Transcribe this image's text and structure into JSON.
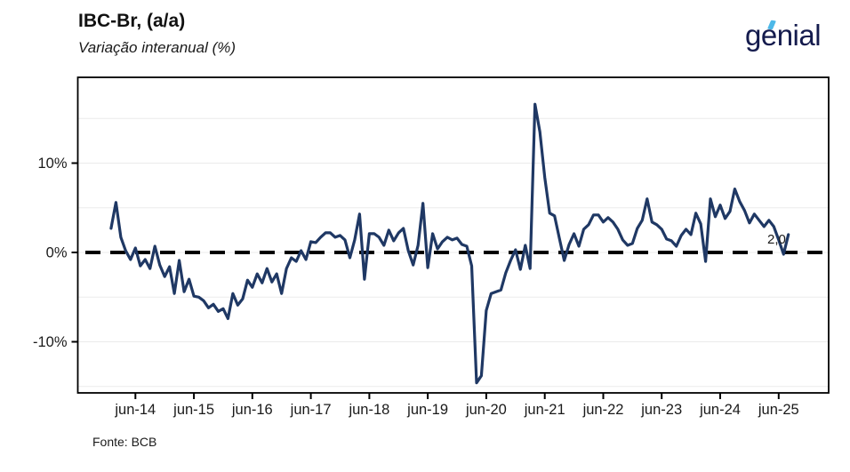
{
  "header": {
    "title": "IBC-Br, (a/a)",
    "subtitle": "Variação interanual (%)"
  },
  "logo": {
    "text": "genial",
    "color": "#141B4D",
    "accent_color": "#4DB8E8"
  },
  "footer": {
    "source": "Fonte: BCB"
  },
  "chart_data": {
    "type": "line",
    "title": "IBC-Br, (a/a)",
    "subtitle": "Variação interanual (%)",
    "unit": "percent, year-over-year",
    "start_month": "2014-01",
    "end_month": "2025-08",
    "grid": true,
    "legend": false,
    "ylim": [
      -15.7,
      19.6
    ],
    "gridline_values": [
      15,
      10,
      5,
      0,
      -5,
      -10,
      -15
    ],
    "y_tick_values": [
      10,
      0,
      -10
    ],
    "y_tick_labels": [
      "10%",
      "0%",
      "-10%"
    ],
    "x_tick_labels": [
      "jun-14",
      "jun-15",
      "jun-16",
      "jun-17",
      "jun-18",
      "jun-19",
      "jun-20",
      "jun-21",
      "jun-22",
      "jun-23",
      "jun-24",
      "jun-25"
    ],
    "x_tick_month_indices": [
      5,
      17,
      29,
      41,
      53,
      65,
      77,
      89,
      101,
      113,
      125,
      137
    ],
    "zero_reference_line": {
      "value": 0,
      "style": "dashed",
      "color": "#000000"
    },
    "last_point_label": "2,0",
    "series": [
      {
        "name": "IBC-Br variação interanual (%)",
        "color": "#1F3864",
        "values": [
          2.7,
          5.6,
          1.7,
          0.2,
          -0.8,
          0.5,
          -1.5,
          -0.8,
          -1.8,
          0.7,
          -1.4,
          -2.7,
          -1.6,
          -4.6,
          -0.9,
          -4.4,
          -3.0,
          -4.9,
          -5.0,
          -5.4,
          -6.2,
          -5.8,
          -6.6,
          -6.3,
          -7.4,
          -4.6,
          -5.9,
          -5.2,
          -3.1,
          -3.9,
          -2.4,
          -3.4,
          -1.8,
          -3.3,
          -2.4,
          -4.6,
          -1.8,
          -0.6,
          -1.0,
          0.2,
          -0.8,
          1.2,
          1.1,
          1.7,
          2.2,
          2.2,
          1.7,
          1.9,
          1.4,
          -0.6,
          1.4,
          4.3,
          -3.0,
          2.1,
          2.1,
          1.7,
          0.8,
          2.5,
          1.3,
          2.2,
          2.7,
          0.2,
          -1.4,
          0.8,
          5.5,
          -1.7,
          2.1,
          0.4,
          1.2,
          1.7,
          1.4,
          1.6,
          0.9,
          0.7,
          -1.5,
          -14.6,
          -13.8,
          -6.5,
          -4.6,
          -4.4,
          -4.2,
          -2.3,
          -0.9,
          0.3,
          -1.9,
          0.8,
          -1.8,
          16.6,
          13.5,
          8.4,
          4.4,
          4.1,
          1.6,
          -0.9,
          0.9,
          2.1,
          0.7,
          2.6,
          3.1,
          4.2,
          4.2,
          3.4,
          3.9,
          3.4,
          2.6,
          1.4,
          0.8,
          1.0,
          2.7,
          3.6,
          6.0,
          3.4,
          3.1,
          2.6,
          1.5,
          1.3,
          0.7,
          1.9,
          2.6,
          2.0,
          4.4,
          3.2,
          -1.0,
          6.0,
          4.0,
          5.3,
          3.8,
          4.6,
          7.1,
          5.7,
          4.7,
          3.3,
          4.3,
          3.6,
          2.9,
          3.6,
          2.9,
          1.4,
          -0.2,
          2.0
        ]
      }
    ]
  }
}
